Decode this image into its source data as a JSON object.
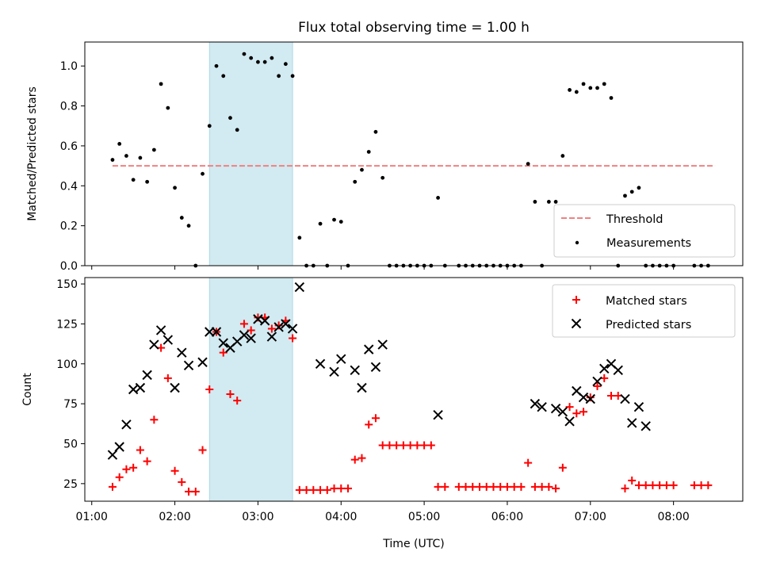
{
  "chart_data": [
    {
      "type": "scatter",
      "title": "Flux total observing time = 1.00 h",
      "xlabel": "",
      "ylabel": "Matched/Predicted stars",
      "ylim": [
        0,
        1.12
      ],
      "yticks": [
        "0.0",
        "0.2",
        "0.4",
        "0.6",
        "0.8",
        "1.0"
      ],
      "highlight_span": {
        "start": "02:25",
        "end": "03:25",
        "color": "#add8e6"
      },
      "threshold": {
        "name": "Threshold",
        "value": 0.5,
        "x_range": [
          "01:15",
          "08:30"
        ],
        "color": "#f08080"
      },
      "legend_position": "lower-right",
      "series": [
        {
          "name": "Measurements",
          "marker": "dot",
          "color": "#000000",
          "x": [
            "01:15",
            "01:20",
            "01:25",
            "01:30",
            "01:35",
            "01:40",
            "01:45",
            "01:50",
            "01:55",
            "02:00",
            "02:05",
            "02:10",
            "02:15",
            "02:20",
            "02:25",
            "02:30",
            "02:35",
            "02:40",
            "02:45",
            "02:50",
            "02:55",
            "03:00",
            "03:05",
            "03:10",
            "03:15",
            "03:20",
            "03:25",
            "03:30",
            "03:35",
            "03:40",
            "03:45",
            "03:50",
            "03:55",
            "04:00",
            "04:05",
            "04:10",
            "04:15",
            "04:20",
            "04:25",
            "04:30",
            "04:35",
            "04:40",
            "04:45",
            "04:50",
            "04:55",
            "05:00",
            "05:05",
            "05:10",
            "05:15",
            "05:25",
            "05:30",
            "05:35",
            "05:40",
            "05:45",
            "05:50",
            "05:55",
            "06:00",
            "06:05",
            "06:10",
            "06:15",
            "06:20",
            "06:25",
            "06:30",
            "06:35",
            "06:40",
            "06:45",
            "06:50",
            "06:55",
            "07:00",
            "07:05",
            "07:10",
            "07:15",
            "07:20",
            "07:25",
            "07:30",
            "07:35",
            "07:40",
            "07:45",
            "07:50",
            "07:55",
            "08:00",
            "08:15",
            "08:20",
            "08:25"
          ],
          "y": [
            0.53,
            0.61,
            0.55,
            0.43,
            0.54,
            0.42,
            0.58,
            0.91,
            0.79,
            0.39,
            0.24,
            0.2,
            0.0,
            0.46,
            0.7,
            1.0,
            0.95,
            0.74,
            0.68,
            1.06,
            1.04,
            1.02,
            1.02,
            1.04,
            0.95,
            1.01,
            0.95,
            0.14,
            0.0,
            0.0,
            0.21,
            0.0,
            0.23,
            0.22,
            0.0,
            0.42,
            0.48,
            0.57,
            0.67,
            0.44,
            0.0,
            0.0,
            0.0,
            0.0,
            0.0,
            0.0,
            0.0,
            0.34,
            0.0,
            0.0,
            0.0,
            0.0,
            0.0,
            0.0,
            0.0,
            0.0,
            0.0,
            0.0,
            0.0,
            0.51,
            0.32,
            0.0,
            0.32,
            0.32,
            0.55,
            0.88,
            0.87,
            0.91,
            0.89,
            0.89,
            0.91,
            0.84,
            0.0,
            0.35,
            0.37,
            0.39,
            0.0,
            0.0,
            0.0,
            0.0,
            0.0,
            0.0,
            0.0,
            0.0
          ]
        }
      ]
    },
    {
      "type": "scatter",
      "title": "",
      "xlabel": "Time (UTC)",
      "ylabel": "Count",
      "ylim": [
        14,
        154
      ],
      "yticks": [
        "25",
        "50",
        "75",
        "100",
        "125",
        "150"
      ],
      "xlim": [
        "00:55",
        "08:50"
      ],
      "xticks": [
        "01:00",
        "02:00",
        "03:00",
        "04:00",
        "05:00",
        "06:00",
        "07:00",
        "08:00"
      ],
      "highlight_span": {
        "start": "02:25",
        "end": "03:25",
        "color": "#add8e6"
      },
      "legend_position": "upper-right",
      "series": [
        {
          "name": "Matched stars",
          "marker": "plus",
          "color": "#ff0000",
          "x": [
            "01:15",
            "01:20",
            "01:25",
            "01:30",
            "01:35",
            "01:40",
            "01:45",
            "01:50",
            "01:55",
            "02:00",
            "02:05",
            "02:10",
            "02:15",
            "02:20",
            "02:25",
            "02:30",
            "02:35",
            "02:40",
            "02:45",
            "02:50",
            "02:55",
            "03:00",
            "03:05",
            "03:10",
            "03:15",
            "03:20",
            "03:25",
            "03:30",
            "03:35",
            "03:40",
            "03:45",
            "03:50",
            "03:55",
            "04:00",
            "04:05",
            "04:10",
            "04:15",
            "04:20",
            "04:25",
            "04:30",
            "04:35",
            "04:40",
            "04:45",
            "04:50",
            "04:55",
            "05:00",
            "05:05",
            "05:10",
            "05:15",
            "05:25",
            "05:30",
            "05:35",
            "05:40",
            "05:45",
            "05:50",
            "05:55",
            "06:00",
            "06:05",
            "06:10",
            "06:15",
            "06:20",
            "06:25",
            "06:30",
            "06:35",
            "06:40",
            "06:45",
            "06:50",
            "06:55",
            "07:00",
            "07:05",
            "07:10",
            "07:15",
            "07:20",
            "07:25",
            "07:30",
            "07:35",
            "07:40",
            "07:45",
            "07:50",
            "07:55",
            "08:00",
            "08:15",
            "08:20",
            "08:25"
          ],
          "y": [
            23,
            29,
            34,
            35,
            46,
            39,
            65,
            110,
            91,
            33,
            26,
            20,
            20,
            46,
            84,
            120,
            107,
            81,
            77,
            125,
            121,
            129,
            129,
            122,
            124,
            127,
            116,
            21,
            21,
            21,
            21,
            21,
            22,
            22,
            22,
            40,
            41,
            62,
            66,
            49,
            49,
            49,
            49,
            49,
            49,
            49,
            49,
            23,
            23,
            23,
            23,
            23,
            23,
            23,
            23,
            23,
            23,
            23,
            23,
            38,
            23,
            23,
            23,
            22,
            35,
            73,
            69,
            70,
            79,
            86,
            91,
            80,
            80,
            22,
            27,
            24,
            24,
            24,
            24,
            24,
            24,
            24,
            24,
            24
          ]
        },
        {
          "name": "Predicted stars",
          "marker": "x",
          "color": "#000000",
          "x": [
            "01:15",
            "01:20",
            "01:25",
            "01:30",
            "01:35",
            "01:40",
            "01:45",
            "01:50",
            "01:55",
            "02:00",
            "02:05",
            "02:10",
            "02:20",
            "02:25",
            "02:30",
            "02:35",
            "02:40",
            "02:45",
            "02:50",
            "02:55",
            "03:00",
            "03:05",
            "03:10",
            "03:15",
            "03:20",
            "03:25",
            "03:30",
            "03:45",
            "03:55",
            "04:00",
            "04:10",
            "04:15",
            "04:20",
            "04:25",
            "04:30",
            "05:10",
            "06:20",
            "06:25",
            "06:35",
            "06:40",
            "06:45",
            "06:50",
            "06:55",
            "07:00",
            "07:05",
            "07:10",
            "07:15",
            "07:20",
            "07:25",
            "07:30",
            "07:35",
            "07:40"
          ],
          "y": [
            43,
            48,
            62,
            84,
            85,
            93,
            112,
            121,
            115,
            85,
            107,
            99,
            101,
            120,
            120,
            113,
            110,
            114,
            118,
            116,
            128,
            127,
            117,
            123,
            125,
            122,
            148,
            100,
            95,
            103,
            96,
            85,
            109,
            98,
            112,
            68,
            75,
            73,
            72,
            70,
            64,
            83,
            79,
            78,
            89,
            97,
            100,
            96,
            78,
            63,
            73,
            61
          ]
        }
      ]
    }
  ]
}
